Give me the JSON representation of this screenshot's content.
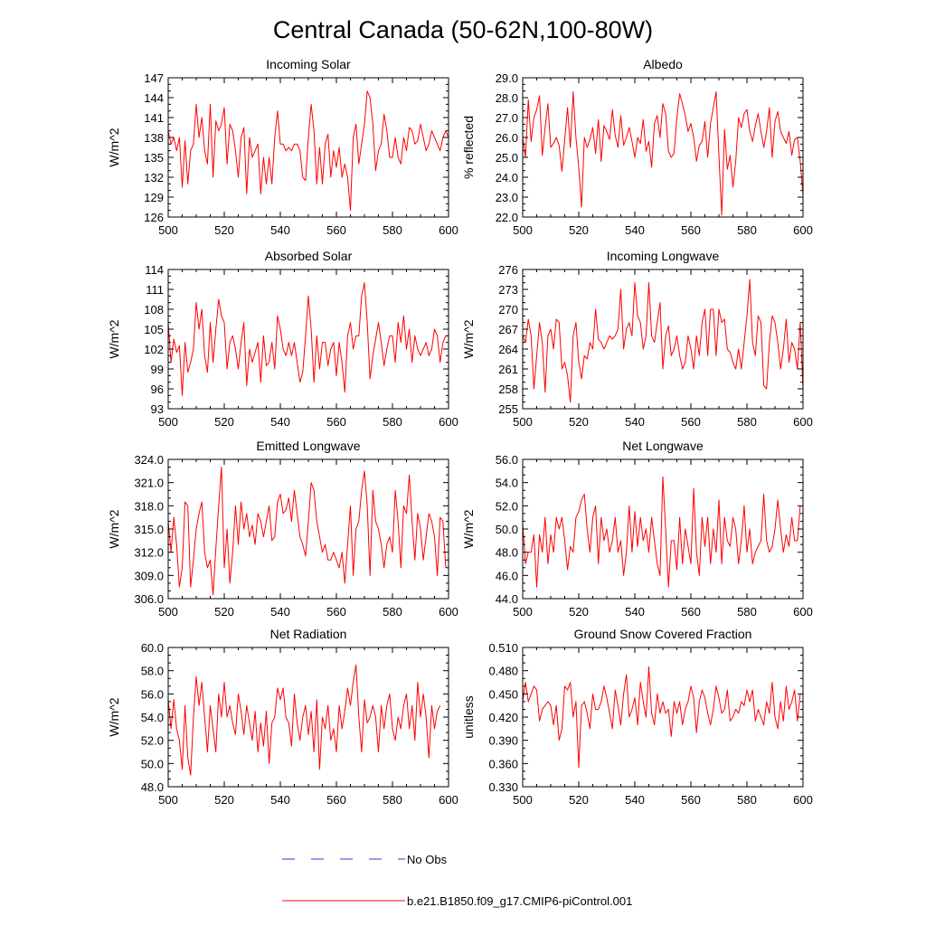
{
  "figure_title": "Central Canada (50-62N,100-80W)",
  "colors": {
    "model": "#ff0000",
    "obs": "#3333cc",
    "axis": "#000000"
  },
  "legend": {
    "obs_label": "No Obs",
    "model_label": "b.e21.B1850.f09_g17.CMIP6-piControl.001"
  },
  "chart_data": [
    {
      "type": "line",
      "title": "Incoming Solar",
      "ylabel": "W/m^2",
      "xlim": [
        500,
        600
      ],
      "ylim": [
        126,
        147
      ],
      "xticks": [
        500,
        520,
        540,
        560,
        580,
        600
      ],
      "yticks": [
        126,
        129,
        132,
        135,
        138,
        141,
        144,
        147
      ],
      "ytick_decimals": 0,
      "series": [
        {
          "name": "b.e21.B1850.f09_g17.CMIP6-piControl.001",
          "values": [
            139,
            137,
            138,
            136,
            138,
            130.5,
            137.5,
            131,
            136,
            137,
            143,
            138,
            141,
            136,
            134,
            143,
            132,
            140.5,
            139,
            140,
            142.5,
            134,
            140,
            139,
            136,
            132,
            138,
            139.5,
            129.5,
            138,
            135,
            136,
            137,
            129.5,
            135,
            131,
            135,
            131,
            138,
            142,
            137,
            137,
            136,
            136.5,
            136,
            137,
            137,
            136,
            132,
            131.5,
            138,
            143,
            139,
            131,
            136.5,
            131,
            137,
            138.5,
            132,
            136,
            133.5,
            136.5,
            132,
            134,
            132,
            127,
            138,
            140,
            134,
            137,
            140,
            145,
            144,
            140,
            133,
            136,
            137,
            141.5,
            139,
            135,
            135,
            138,
            135,
            134,
            138,
            136,
            139.5,
            139,
            137,
            137.5,
            140,
            138,
            136,
            137,
            139,
            138,
            137,
            136,
            138,
            139,
            138,
            133
          ]
        }
      ]
    },
    {
      "type": "line",
      "title": "Albedo",
      "ylabel": "% reflected",
      "xlim": [
        500,
        600
      ],
      "ylim": [
        22,
        29
      ],
      "xticks": [
        500,
        520,
        540,
        560,
        580,
        600
      ],
      "yticks": [
        22,
        23,
        24,
        25,
        26,
        27,
        28,
        29
      ],
      "ytick_decimals": 1,
      "series": [
        {
          "name": "b.e21.B1850.f09_g17.CMIP6-piControl.001",
          "values": [
            26,
            25,
            27.9,
            25.8,
            27,
            27.4,
            28.1,
            25.1,
            26.5,
            27.7,
            25.5,
            25.7,
            26,
            25.6,
            24.3,
            25.9,
            27.5,
            25.5,
            28.3,
            26,
            24.5,
            22.5,
            26,
            25.5,
            25.9,
            26.5,
            25.2,
            26.9,
            24.8,
            26.6,
            26.3,
            25.9,
            27.4,
            26.1,
            25.5,
            27.1,
            25.6,
            26,
            26.5,
            25.8,
            25,
            26,
            25.7,
            26.9,
            25.3,
            25.8,
            24.5,
            26.7,
            27.1,
            26,
            27.7,
            27.2,
            25.3,
            25,
            25.2,
            27,
            28.2,
            27.7,
            27.1,
            26.3,
            26.7,
            26,
            24.8,
            25.6,
            25.8,
            26.8,
            25,
            26.7,
            27.5,
            28.3,
            25.1,
            22.1,
            26.4,
            24.4,
            25.1,
            23.5,
            24.8,
            27,
            26.5,
            27.2,
            27.4,
            26.3,
            25.8,
            26.6,
            27.2,
            26.3,
            25.5,
            26.3,
            27.5,
            25,
            26.8,
            27.3,
            26.3,
            26,
            25.7,
            26.3,
            25.1,
            25.9,
            26,
            24.8,
            23.1
          ]
        }
      ]
    },
    {
      "type": "line",
      "title": "Absorbed Solar",
      "ylabel": "W/m^2",
      "xlim": [
        500,
        600
      ],
      "ylim": [
        93,
        114
      ],
      "xticks": [
        500,
        520,
        540,
        560,
        580,
        600
      ],
      "yticks": [
        93,
        96,
        99,
        102,
        105,
        108,
        111,
        114
      ],
      "ytick_decimals": 0,
      "series": [
        {
          "name": "b.e21.B1850.f09_g17.CMIP6-piControl.001",
          "values": [
            106,
            100,
            103.5,
            101.5,
            102.5,
            95,
            103,
            98.5,
            100,
            102,
            109,
            105,
            108,
            101,
            98.5,
            106,
            100,
            105,
            109.5,
            107,
            106,
            99,
            103,
            104,
            102,
            99,
            103,
            106,
            96.5,
            102,
            100,
            101.5,
            103,
            97,
            104,
            99.5,
            100,
            103,
            99,
            107,
            105,
            102,
            101,
            103,
            101,
            103,
            100,
            97,
            98.5,
            104,
            110,
            105,
            97,
            104,
            99,
            103,
            103,
            99.5,
            102,
            103,
            98,
            103,
            100,
            95.5,
            104,
            106,
            102,
            104,
            104,
            110,
            112,
            106,
            97.5,
            101,
            103.5,
            106,
            103,
            99.5,
            102,
            104,
            104,
            100,
            106,
            103,
            107,
            102,
            105,
            100,
            104,
            102,
            101,
            102,
            103,
            101,
            102,
            105,
            104,
            100,
            103,
            104
          ]
        }
      ]
    },
    {
      "type": "line",
      "title": "Incoming Longwave",
      "ylabel": "W/m^2",
      "xlim": [
        500,
        600
      ],
      "ylim": [
        255,
        276
      ],
      "xticks": [
        500,
        520,
        540,
        560,
        580,
        600
      ],
      "yticks": [
        255,
        258,
        261,
        264,
        267,
        270,
        273,
        276
      ],
      "ytick_decimals": 0,
      "series": [
        {
          "name": "b.e21.B1850.f09_g17.CMIP6-piControl.001",
          "values": [
            266,
            265,
            268.5,
            266,
            258,
            263,
            268,
            265,
            257.5,
            266,
            267,
            264,
            268.5,
            268,
            261,
            262,
            260,
            256,
            266,
            268,
            262,
            259.5,
            263,
            262.5,
            265,
            264,
            270,
            265.5,
            265,
            264,
            265,
            266,
            265.5,
            266,
            267,
            273,
            264,
            267,
            268,
            266,
            274,
            269,
            268,
            264,
            266,
            274,
            266,
            265,
            268,
            271,
            261,
            266,
            267.5,
            263,
            264,
            266,
            263,
            261,
            262,
            266,
            264,
            261,
            266,
            263,
            268,
            270,
            263,
            270,
            270,
            263,
            270,
            268,
            268.5,
            264,
            263.5,
            262,
            261,
            264,
            261,
            265,
            269,
            274.5,
            265,
            263,
            269,
            268,
            258.5,
            258,
            265,
            269,
            268,
            265,
            261,
            264,
            268.5,
            262,
            265,
            264,
            261,
            268,
            258
          ]
        }
      ]
    },
    {
      "type": "line",
      "title": "Emitted Longwave",
      "ylabel": "W/m^2",
      "xlim": [
        500,
        600
      ],
      "ylim": [
        306,
        324
      ],
      "xticks": [
        500,
        520,
        540,
        560,
        580,
        600
      ],
      "yticks": [
        306,
        309,
        312,
        315,
        318,
        321,
        324
      ],
      "ytick_decimals": 1,
      "series": [
        {
          "name": "b.e21.B1850.f09_g17.CMIP6-piControl.001",
          "values": [
            316,
            312,
            316.5,
            313,
            307.5,
            310,
            318.5,
            318,
            307.5,
            311,
            315,
            317,
            318.5,
            312,
            310,
            311,
            306.5,
            312.5,
            318,
            323,
            310,
            315,
            308,
            312,
            318,
            313,
            318.5,
            315,
            317,
            314,
            315.5,
            313,
            317,
            316,
            314,
            316,
            318,
            313.5,
            314,
            318.5,
            319.5,
            317,
            317.5,
            319,
            316,
            320,
            317,
            314,
            313,
            311.5,
            316,
            321,
            320,
            316,
            314,
            312,
            313,
            311,
            311,
            312,
            311,
            310,
            312,
            308,
            313,
            318,
            309,
            315,
            316,
            320,
            322.5,
            318,
            309,
            320,
            316,
            315,
            313,
            310,
            313,
            314,
            312,
            320,
            316,
            310,
            318,
            317,
            322,
            316,
            311,
            317,
            315,
            311,
            314,
            317,
            316,
            314,
            309,
            316.5,
            316,
            310
          ]
        }
      ]
    },
    {
      "type": "line",
      "title": "Net Longwave",
      "ylabel": "W/m^2",
      "xlim": [
        500,
        600
      ],
      "ylim": [
        44,
        56
      ],
      "xticks": [
        500,
        520,
        540,
        560,
        580,
        600
      ],
      "yticks": [
        44,
        46,
        48,
        50,
        52,
        54,
        56
      ],
      "ytick_decimals": 1,
      "series": [
        {
          "name": "b.e21.B1850.f09_g17.CMIP6-piControl.001",
          "values": [
            50.5,
            47,
            48,
            48,
            49.5,
            45,
            49.5,
            48,
            51,
            47,
            49.5,
            48,
            51,
            50,
            51,
            49,
            46.5,
            48.5,
            48,
            51,
            51.5,
            52.5,
            53,
            50,
            48,
            51,
            52,
            47,
            51,
            49,
            50,
            48,
            49,
            51,
            48,
            49,
            46,
            48,
            52,
            48,
            51.5,
            48.5,
            51,
            49,
            50,
            48,
            51,
            49,
            47,
            46,
            54.5,
            50,
            45,
            49,
            49,
            46.5,
            51,
            47,
            50,
            48.5,
            47,
            53.5,
            48,
            46,
            51,
            48.5,
            51,
            47,
            50,
            48,
            52.5,
            47,
            51,
            49,
            48.5,
            51,
            50,
            47,
            49,
            52,
            48,
            50,
            47,
            48,
            48.5,
            49,
            53,
            49,
            48,
            48.5,
            50,
            52.5,
            50,
            48,
            49.5,
            48.5,
            51,
            49,
            49,
            52
          ]
        }
      ]
    },
    {
      "type": "line",
      "title": "Net Radiation",
      "ylabel": "W/m^2",
      "xlim": [
        500,
        600
      ],
      "ylim": [
        48,
        60
      ],
      "xticks": [
        500,
        520,
        540,
        560,
        580,
        600
      ],
      "yticks": [
        48,
        50,
        52,
        54,
        56,
        58,
        60
      ],
      "ytick_decimals": 1,
      "series": [
        {
          "name": "b.e21.B1850.f09_g17.CMIP6-piControl.001",
          "values": [
            55.5,
            53,
            55.5,
            53,
            52,
            49.5,
            55,
            50.5,
            49,
            54,
            57.5,
            55,
            57,
            54,
            51,
            55,
            53,
            51,
            56,
            54,
            57,
            54,
            55,
            53.5,
            52.5,
            56,
            54.5,
            52.5,
            55,
            53.5,
            52,
            54.5,
            51,
            53.5,
            51.5,
            54.5,
            50,
            53.5,
            54,
            56.5,
            55.5,
            56.5,
            54,
            53.5,
            51.5,
            56,
            53.5,
            52,
            54,
            55,
            52.5,
            54.5,
            51,
            55.5,
            49.5,
            54,
            53,
            55,
            52,
            53,
            51,
            55,
            53,
            54.5,
            56.5,
            55,
            57,
            58.5,
            54,
            51,
            55.5,
            53.5,
            54,
            55,
            54,
            51,
            55,
            53,
            55,
            56,
            53,
            52,
            54,
            53,
            55,
            56,
            53,
            55,
            52,
            57,
            54,
            56,
            54,
            50.5,
            55,
            53,
            54.5,
            55
          ]
        }
      ]
    },
    {
      "type": "line",
      "title": "Ground Snow Covered Fraction",
      "ylabel": "unitless",
      "xlim": [
        500,
        600
      ],
      "ylim": [
        0.33,
        0.51
      ],
      "xticks": [
        500,
        520,
        540,
        560,
        580,
        600
      ],
      "yticks": [
        0.33,
        0.36,
        0.39,
        0.42,
        0.45,
        0.48,
        0.51
      ],
      "ytick_decimals": 3,
      "series": [
        {
          "name": "b.e21.B1850.f09_g17.CMIP6-piControl.001",
          "values": [
            0.44,
            0.465,
            0.44,
            0.45,
            0.46,
            0.455,
            0.415,
            0.43,
            0.435,
            0.44,
            0.435,
            0.41,
            0.435,
            0.39,
            0.405,
            0.46,
            0.455,
            0.465,
            0.42,
            0.44,
            0.355,
            0.435,
            0.44,
            0.425,
            0.405,
            0.45,
            0.43,
            0.43,
            0.44,
            0.46,
            0.445,
            0.425,
            0.405,
            0.455,
            0.435,
            0.41,
            0.45,
            0.475,
            0.42,
            0.43,
            0.445,
            0.41,
            0.465,
            0.44,
            0.42,
            0.485,
            0.425,
            0.41,
            0.45,
            0.425,
            0.44,
            0.425,
            0.43,
            0.395,
            0.44,
            0.425,
            0.44,
            0.41,
            0.43,
            0.44,
            0.46,
            0.445,
            0.4,
            0.44,
            0.455,
            0.445,
            0.425,
            0.41,
            0.43,
            0.46,
            0.445,
            0.425,
            0.43,
            0.455,
            0.415,
            0.42,
            0.43,
            0.425,
            0.44,
            0.435,
            0.455,
            0.44,
            0.455,
            0.415,
            0.43,
            0.42,
            0.41,
            0.44,
            0.425,
            0.465,
            0.42,
            0.405,
            0.44,
            0.415,
            0.46,
            0.43,
            0.44,
            0.455,
            0.415,
            0.45
          ]
        }
      ]
    }
  ]
}
